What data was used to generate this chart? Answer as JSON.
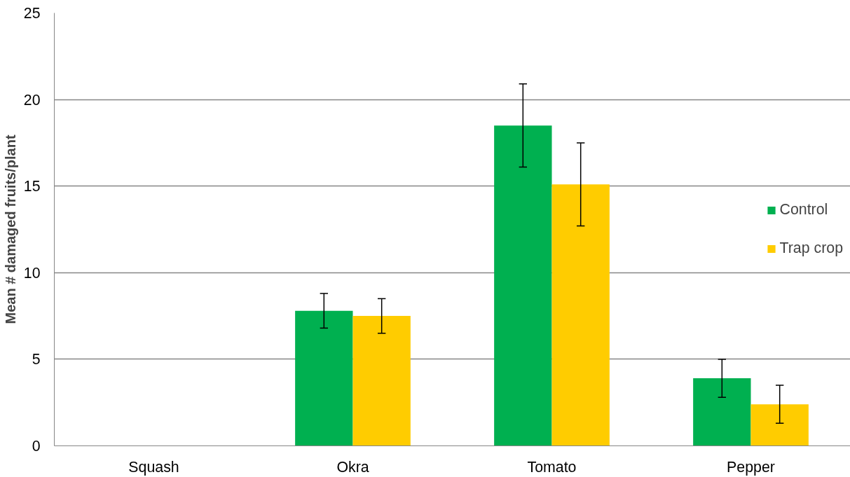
{
  "chart_data": {
    "type": "bar",
    "ylabel": "Mean # damaged fruits/plant",
    "categories": [
      "Squash",
      "Okra",
      "Tomato",
      "Pepper"
    ],
    "series": [
      {
        "name": "Control",
        "color": "#00b050",
        "values": [
          0,
          7.8,
          18.5,
          3.9
        ],
        "errors": [
          null,
          1.0,
          2.4,
          1.1
        ]
      },
      {
        "name": "Trap crop",
        "color": "#ffcc00",
        "values": [
          0,
          7.5,
          15.1,
          2.4
        ],
        "errors": [
          null,
          1.0,
          2.4,
          1.1
        ]
      }
    ],
    "ylim": [
      0,
      25
    ],
    "yticks": [
      0,
      5,
      10,
      15,
      20,
      25
    ],
    "grid": "y",
    "legend": "right"
  }
}
